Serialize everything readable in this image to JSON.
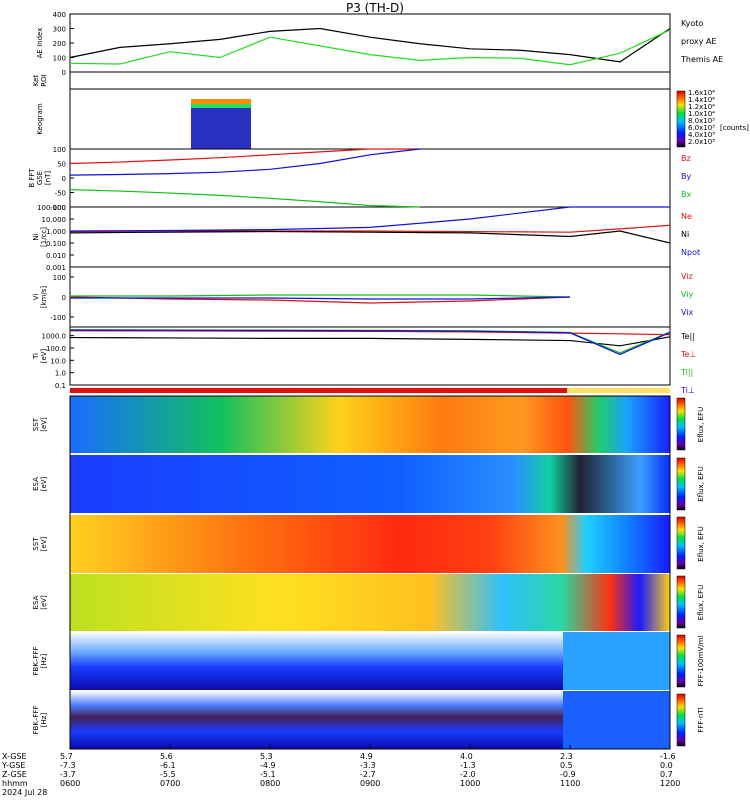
{
  "title": "P3 (TH-D)",
  "colors": {
    "red": "#e01010",
    "green": "#10c010",
    "blue": "#1010e0",
    "black": "#000000",
    "bright_green": "#22dd22"
  },
  "panels": [
    {
      "ylabel": [
        "AE Index"
      ],
      "legend": [
        "Kyoto",
        "proxy AE",
        "Themis AE"
      ]
    },
    {
      "ylabel": [
        "Ket",
        "ROI"
      ],
      "legend": []
    },
    {
      "ylabel": [
        "Keogram"
      ],
      "legend": []
    },
    {
      "ylabel": [
        "B FFT",
        "GSE",
        "[nT]"
      ],
      "legend": [
        "Bz",
        "By",
        "Bx"
      ]
    },
    {
      "ylabel": [
        "Ni",
        "[1/cc]"
      ],
      "legend": [
        "Ne",
        "Ni",
        "Npot"
      ]
    },
    {
      "ylabel": [
        "Vi",
        "[km/s]"
      ],
      "legend": [
        "Viz",
        "Viy",
        "Vix"
      ]
    },
    {
      "ylabel": [
        "Ti",
        "[eV]"
      ],
      "legend": [
        "Te||",
        "Te⊥",
        "Ti||",
        "Ti⊥"
      ]
    },
    {
      "ylabel": [
        "SST",
        "[eV]"
      ],
      "legend": [
        "Eflux, EFU"
      ]
    },
    {
      "ylabel": [
        "ESA",
        "[eV]"
      ],
      "legend": [
        "Eflux, EFU"
      ]
    },
    {
      "ylabel": [
        "SST",
        "[eV]"
      ],
      "legend": [
        "Eflux, EFU"
      ]
    },
    {
      "ylabel": [
        "ESA",
        "[eV]"
      ],
      "legend": [
        "Eflux, EFU"
      ]
    },
    {
      "ylabel": [
        "FBK–FFF",
        "[Hz]"
      ],
      "legend": [
        "FFF-100mV/ml"
      ]
    },
    {
      "ylabel": [
        "FBK–FFF",
        "[Hz]"
      ],
      "legend": [
        "FFF-nTl"
      ]
    }
  ],
  "keogram_colorbar": {
    "ticks": [
      "1.6x10⁴",
      "1.4x10⁴",
      "1.2x10⁴",
      "1.0x10⁴",
      "8.0x10³",
      "6.0x10³",
      "4.0x10³",
      "2.0x10³"
    ],
    "unit": "[counts]"
  },
  "footer": {
    "row_labels": [
      "X-GSE",
      "Y-GSE",
      "Z-GSE",
      "hhmm",
      "2024 Jul 28"
    ],
    "columns": [
      {
        "x": "5.7",
        "y": "-7.3",
        "z": "-3.7",
        "t": "0600"
      },
      {
        "x": "5.6",
        "y": "-6.1",
        "z": "-5.5",
        "t": "0700"
      },
      {
        "x": "5.3",
        "y": "-4.9",
        "z": "-5.1",
        "t": "0800"
      },
      {
        "x": "4.9",
        "y": "-3.3",
        "z": "-2.7",
        "t": "0900"
      },
      {
        "x": "4.0",
        "y": "-1.3",
        "z": "-2.0",
        "t": "1000"
      },
      {
        "x": "2.3",
        "y": "0.5",
        "z": "-0.9",
        "t": "1100"
      },
      {
        "x": "-1.6",
        "y": "0.0",
        "z": "0.7",
        "t": "1200"
      }
    ]
  },
  "chart_data": [
    {
      "type": "line",
      "title": "AE Index",
      "ylim": [
        0,
        400
      ],
      "yticks": [
        "400",
        "300",
        "200",
        "100",
        "0"
      ],
      "x": [
        "0600",
        "0630",
        "0700",
        "0730",
        "0800",
        "0830",
        "0900",
        "0930",
        "1000",
        "1030",
        "1100",
        "1130",
        "1200"
      ],
      "series": [
        {
          "name": "Themis AE",
          "values": [
            100,
            170,
            195,
            225,
            280,
            300,
            240,
            195,
            160,
            150,
            120,
            70,
            300
          ]
        },
        {
          "name": "Kyoto proxy AE",
          "values": [
            60,
            55,
            140,
            100,
            240,
            180,
            120,
            80,
            100,
            95,
            50,
            130,
            290
          ]
        }
      ]
    },
    {
      "type": "line",
      "title": "B FFT GSE",
      "ylim": [
        -100,
        100
      ],
      "yticks": [
        "100",
        "50",
        "0",
        "-50",
        "-100"
      ],
      "x": [
        "0600",
        "0630",
        "0700",
        "0730",
        "0800",
        "0830",
        "0900",
        "0930"
      ],
      "series": [
        {
          "name": "Bz",
          "values": [
            50,
            55,
            62,
            70,
            80,
            90,
            100,
            100
          ]
        },
        {
          "name": "By",
          "values": [
            10,
            12,
            15,
            20,
            30,
            50,
            80,
            100
          ]
        },
        {
          "name": "Bx",
          "values": [
            -40,
            -45,
            -52,
            -60,
            -70,
            -82,
            -95,
            -100
          ]
        }
      ]
    },
    {
      "type": "line",
      "title": "Ni",
      "ylim": [
        0.001,
        100
      ],
      "yticks": [
        "100.000",
        "10.000",
        "1.000",
        "0.100",
        "0.010",
        "0.001"
      ],
      "x": [
        "0600",
        "0700",
        "0800",
        "0900",
        "1000",
        "1100",
        "1130",
        "1200"
      ],
      "series": [
        {
          "name": "Ne",
          "values": [
            0.9,
            1.0,
            1.0,
            1.0,
            0.9,
            0.8,
            1.5,
            3.0
          ]
        },
        {
          "name": "Ni",
          "values": [
            0.7,
            0.8,
            0.9,
            0.8,
            0.7,
            0.35,
            1.0,
            0.1
          ]
        },
        {
          "name": "Npot",
          "values": [
            1.0,
            1.1,
            1.3,
            2.0,
            10,
            100,
            100,
            100
          ]
        }
      ]
    },
    {
      "type": "line",
      "title": "Vi",
      "ylim": [
        -150,
        150
      ],
      "yticks": [
        "100",
        "0",
        "-100"
      ],
      "x": [
        "0600",
        "0700",
        "0800",
        "0900",
        "1000",
        "1100"
      ],
      "series": [
        {
          "name": "Viz",
          "values": [
            0,
            -10,
            -15,
            -30,
            -20,
            0
          ]
        },
        {
          "name": "Viy",
          "values": [
            5,
            5,
            10,
            10,
            10,
            0
          ]
        },
        {
          "name": "Vix",
          "values": [
            -5,
            -5,
            -5,
            -10,
            -10,
            0
          ]
        }
      ]
    },
    {
      "type": "line",
      "title": "Ti",
      "ylim": [
        0.1,
        5000
      ],
      "yticks": [
        "1000.0",
        "100.0",
        "10.0",
        "1.0",
        "0.1"
      ],
      "x": [
        "0600",
        "0700",
        "0800",
        "0900",
        "1000",
        "1100",
        "1130",
        "1200"
      ],
      "series": [
        {
          "name": "Te||",
          "values": [
            700,
            650,
            600,
            600,
            500,
            400,
            150,
            800
          ]
        },
        {
          "name": "Te⊥",
          "values": [
            2500,
            2400,
            2300,
            2200,
            2000,
            1600,
            1400,
            1200
          ]
        },
        {
          "name": "Ti||",
          "values": [
            3000,
            2900,
            2800,
            2700,
            2500,
            1800,
            40,
            2000
          ]
        },
        {
          "name": "Ti⊥",
          "values": [
            2800,
            2700,
            2600,
            2500,
            2300,
            1700,
            30,
            1800
          ]
        }
      ]
    }
  ]
}
